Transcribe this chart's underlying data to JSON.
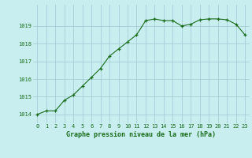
{
  "x": [
    0,
    1,
    2,
    3,
    4,
    5,
    6,
    7,
    8,
    9,
    10,
    11,
    12,
    13,
    14,
    15,
    16,
    17,
    18,
    19,
    20,
    21,
    22,
    23
  ],
  "y": [
    1014.0,
    1014.2,
    1014.2,
    1014.8,
    1015.1,
    1015.6,
    1016.1,
    1016.6,
    1017.3,
    1017.7,
    1018.1,
    1018.5,
    1019.3,
    1019.4,
    1019.3,
    1019.3,
    1019.0,
    1019.1,
    1019.35,
    1019.4,
    1019.4,
    1019.35,
    1019.1,
    1018.5
  ],
  "line_color": "#1a6b1a",
  "marker_color": "#1a6b1a",
  "bg_color": "#c8eef0",
  "grid_color": "#a0c8d0",
  "xlabel": "Graphe pression niveau de la mer (hPa)",
  "xlabel_color": "#1a6b1a",
  "tick_color": "#1a6b1a",
  "ylim_min": 1013.5,
  "ylim_max": 1020.2,
  "yticks": [
    1014,
    1015,
    1016,
    1017,
    1018,
    1019
  ],
  "xticks": [
    0,
    1,
    2,
    3,
    4,
    5,
    6,
    7,
    8,
    9,
    10,
    11,
    12,
    13,
    14,
    15,
    16,
    17,
    18,
    19,
    20,
    21,
    22,
    23
  ]
}
